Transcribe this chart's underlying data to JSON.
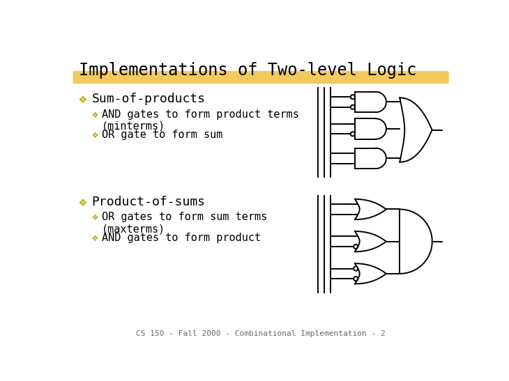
{
  "title": "Implementations of Two-level Logic",
  "highlight_color": "#F0C040",
  "bg_color": "#FFFFFF",
  "text_color": "#000000",
  "bullet_color": "#C8A800",
  "font_family": "monospace",
  "title_fontsize": 17,
  "bullet1_fontsize": 13,
  "sub_fontsize": 11,
  "footer_text": "CS 150 - Fall 2000 - Combinational Implementation - 2",
  "footer_fontsize": 8,
  "bullet1_text": "Sum-of-products",
  "sub1a_text": "AND gates to form product terms\n(minterms)",
  "sub1b_text": "OR gate to form sum",
  "bullet2_text": "Product-of-sums",
  "sub2a_text": "OR gates to form sum terms\n(maxterms)",
  "sub2b_text": "AND gates to form product"
}
